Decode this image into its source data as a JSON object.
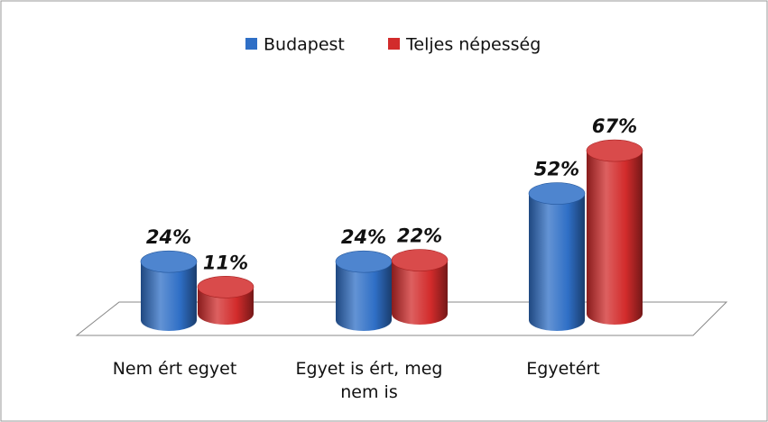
{
  "chart_data": {
    "type": "bar3d",
    "categories": [
      "Nem ért egyet",
      "Egyet is ért, meg nem is",
      "Egyetért"
    ],
    "series": [
      {
        "name": "Budapest",
        "color": "#2f6fc6",
        "values": [
          24,
          24,
          52
        ],
        "value_labels": [
          "24%",
          "24%",
          "52%"
        ]
      },
      {
        "name": "Teljes népesség",
        "color": "#d22b2b",
        "values": [
          11,
          22,
          67
        ],
        "value_labels": [
          "11%",
          "22%",
          "67%"
        ]
      }
    ],
    "legend": "top"
  }
}
